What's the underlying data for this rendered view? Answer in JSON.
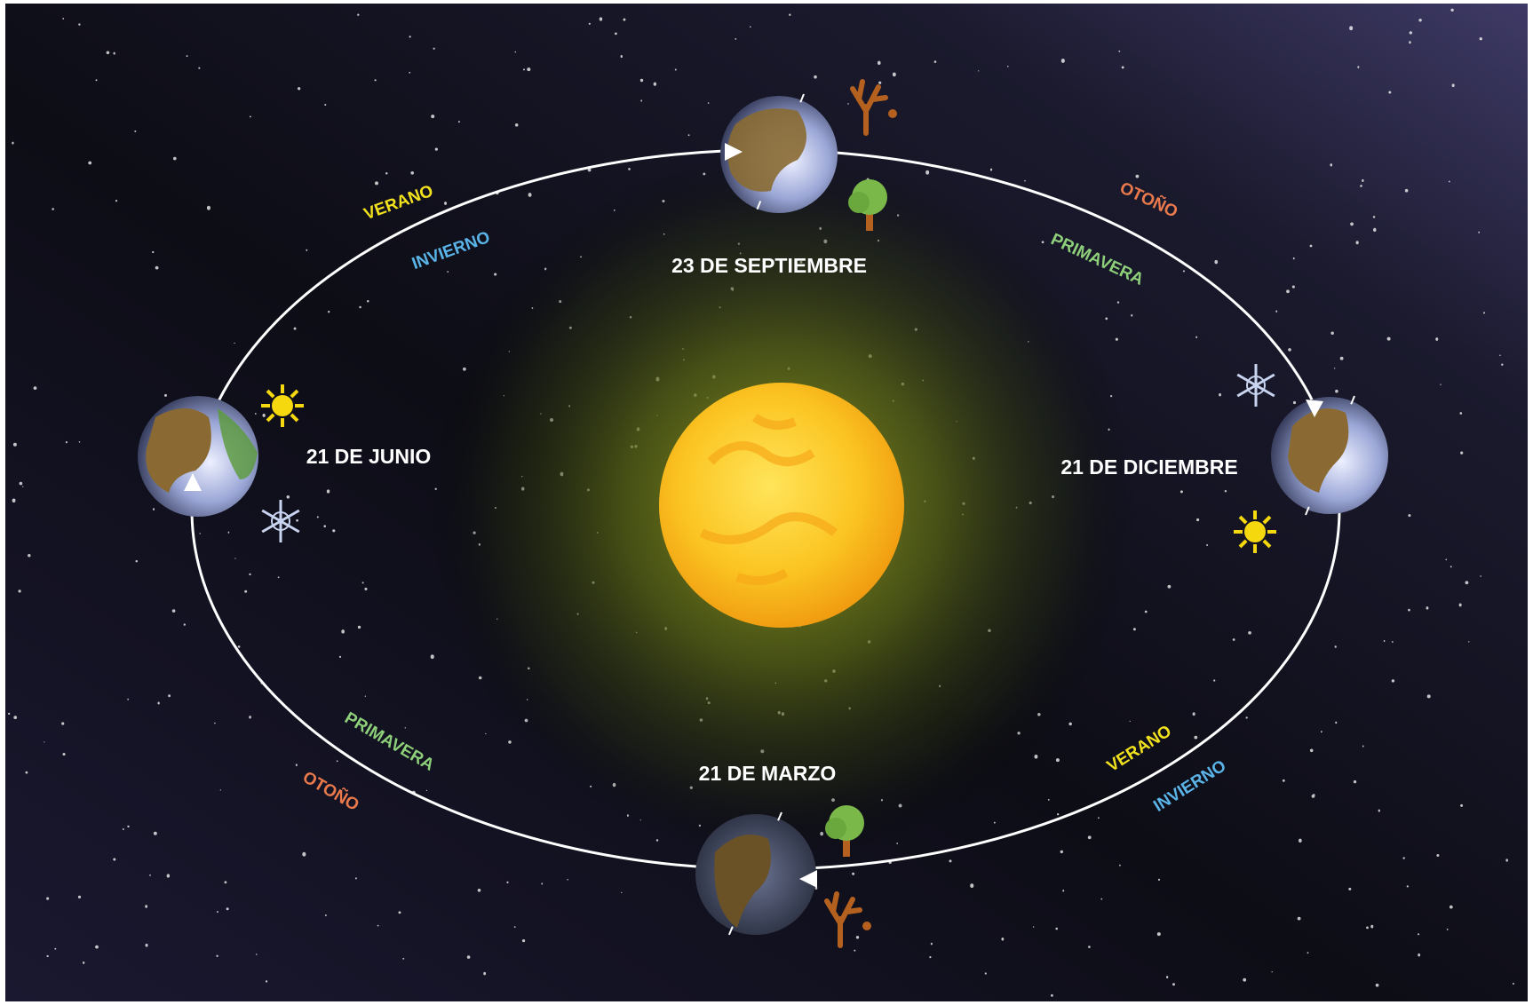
{
  "dates": [
    "23 DE SEPTIEMBRE",
    "21 DE JUNIO",
    "21 DE DICIEMBRE",
    "21 DE MARZO"
  ],
  "arcs": [
    {
      "north": "VERANO",
      "south": "INVIERNO"
    },
    {
      "north": "OTOÑO",
      "south": "PRIMAVERA"
    },
    {
      "north": "PRIMAVERA",
      "south": "OTOÑO"
    },
    {
      "north": "VERANO",
      "south": "INVIERNO"
    }
  ]
}
